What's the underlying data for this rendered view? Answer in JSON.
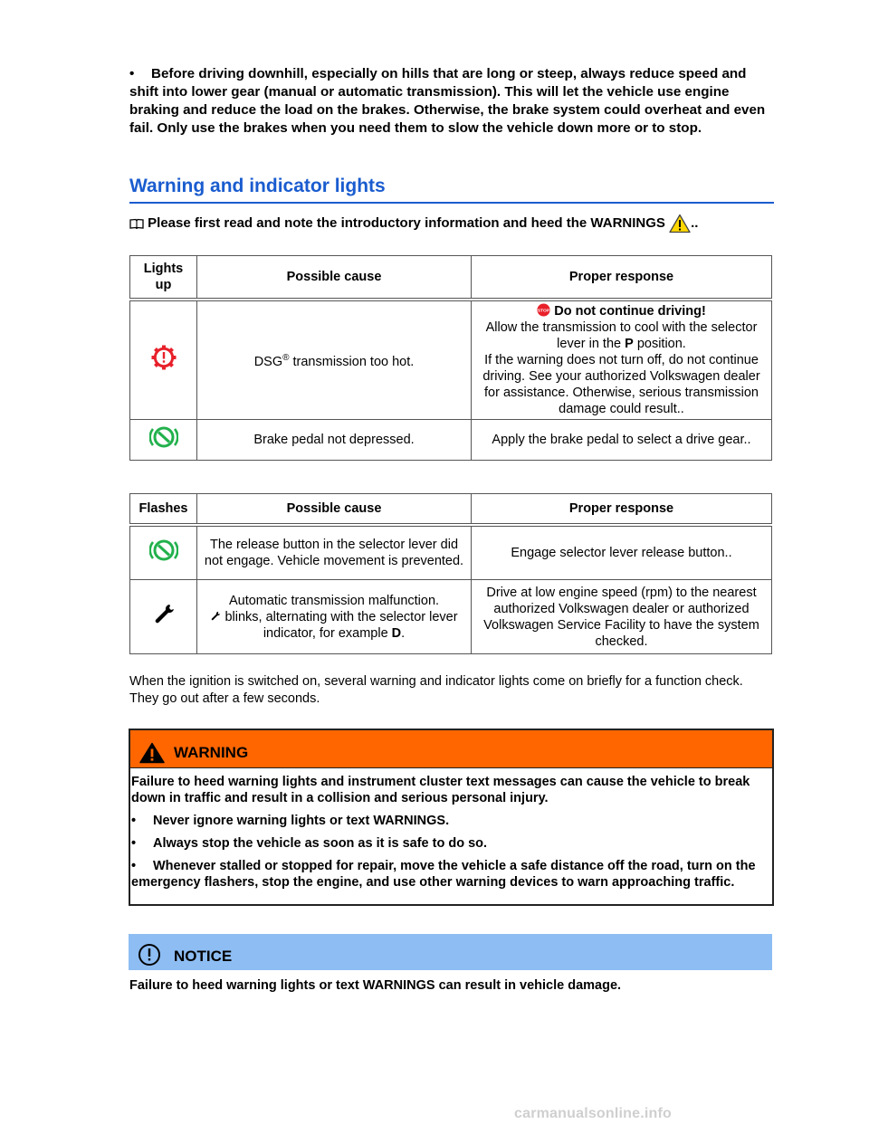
{
  "top_bullet": {
    "bullet": "•",
    "text": "Before driving downhill, especially on hills that are long or steep, always reduce speed and shift into lower gear (manual or automatic transmission). This will let the vehicle use engine braking and reduce the load on the brakes. Otherwise, the brake system could overheat and even fail. Only use the brakes when you need them to slow the vehicle down more or to stop."
  },
  "section": {
    "heading": "Warning and indicator lights",
    "intro": "Please first read and note the introductory information and heed the WARNINGS",
    "intro_suffix": ".."
  },
  "table_lights_up": {
    "headers": [
      "Lights up",
      "Possible cause",
      "Proper response"
    ],
    "rows": [
      {
        "icon": "gear-warning-icon",
        "cause_pre": "DSG",
        "cause_sup": "®",
        "cause_post": " transmission too hot.",
        "response_bold": "Do not continue driving!",
        "response_line1": "Allow the transmission to cool with the selector lever in the ",
        "response_p": "P",
        "response_line2": " position.",
        "response_line3": "If the warning does not turn off, do not continue driving. See your authorized Volkswagen dealer for assistance. Otherwise, serious transmission damage could result.."
      },
      {
        "icon": "brake-pedal-icon",
        "cause": "Brake pedal not depressed.",
        "response": "Apply the brake pedal to select a drive gear.."
      }
    ]
  },
  "table_flashes": {
    "headers": [
      "Flashes",
      "Possible cause",
      "Proper response"
    ],
    "rows": [
      {
        "icon": "brake-pedal-icon",
        "cause": "The release button in the selector lever did not engage. Vehicle movement is prevented.",
        "response": "Engage selector lever release button.."
      },
      {
        "icon": "wrench-icon",
        "cause_line1": "Automatic transmission malfunction.",
        "cause_line2": " blinks, alternating with the selector lever indicator, for example ",
        "cause_d": "D",
        "cause_end": ".",
        "response": "Drive at low engine speed (rpm) to the nearest authorized Volkswagen dealer or authorized Volkswagen Service Facility to have the system checked."
      }
    ]
  },
  "paragraph": "When the ignition is switched on, several warning and indicator lights come on briefly for a function check. They go out after a few seconds.",
  "warning_box": {
    "title": "WARNING",
    "intro": "Failure to heed warning lights and instrument cluster text messages can cause the vehicle to break down in traffic and result in a collision and serious personal injury.",
    "bullets": [
      "Never ignore warning lights or text WARNINGS.",
      "Always stop the vehicle as soon as it is safe to do so.",
      "Whenever stalled or stopped for repair, move the vehicle a safe distance off the road, turn on the emergency flashers, stop the engine, and use other warning devices to warn approaching traffic."
    ],
    "bullet_char": "•",
    "header_color": "#ff6600"
  },
  "notice_box": {
    "title": "NOTICE",
    "text": "Failure to heed warning lights or text WARNINGS can result in vehicle damage.",
    "header_color": "#8dbdf3"
  },
  "watermark": "carmanualsonline.info",
  "colors": {
    "heading": "#1a5ccf",
    "red_icon": "#e8202a",
    "green_icon": "#22b14c"
  }
}
